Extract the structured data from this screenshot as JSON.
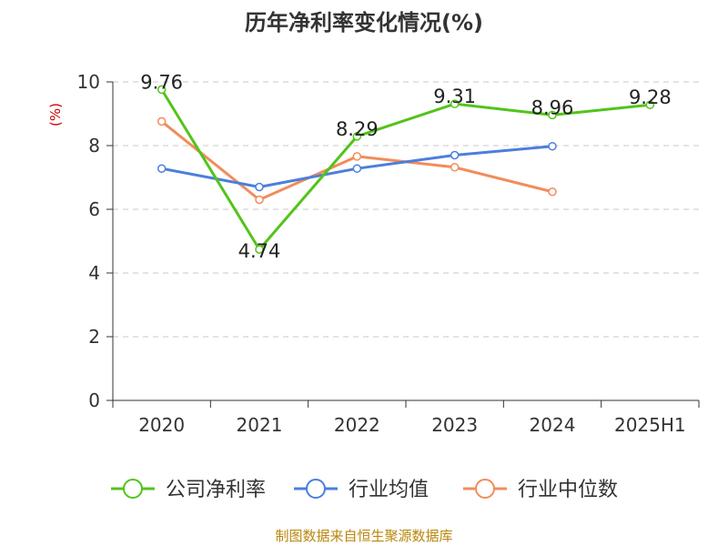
{
  "chart_data": {
    "type": "line",
    "title": "历年净利率变化情况(%)",
    "ylabel": "(%)",
    "categories": [
      "2020",
      "2021",
      "2022",
      "2023",
      "2024",
      "2025H1"
    ],
    "ylim": [
      0,
      10
    ],
    "yticks": [
      0,
      2,
      4,
      6,
      8,
      10
    ],
    "grid": true,
    "legend_position": "bottom",
    "series": [
      {
        "name": "公司净利率",
        "color": "#52c41a",
        "values": [
          9.76,
          4.74,
          8.29,
          9.31,
          8.96,
          9.28
        ],
        "labels": [
          "9.76",
          "4.74",
          "8.29",
          "9.31",
          "8.96",
          "9.28"
        ]
      },
      {
        "name": "行业均值",
        "color": "#4a7fdc",
        "values": [
          7.28,
          6.7,
          7.28,
          7.7,
          7.98,
          null
        ]
      },
      {
        "name": "行业中位数",
        "color": "#f28c5a",
        "values": [
          8.76,
          6.3,
          7.66,
          7.32,
          6.55,
          null
        ]
      }
    ]
  },
  "source_note": "制图数据来自恒生聚源数据库"
}
